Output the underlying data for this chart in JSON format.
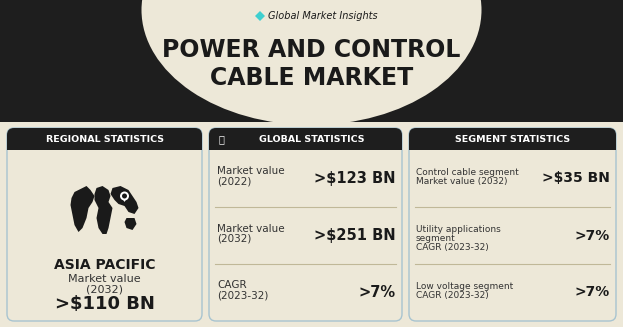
{
  "title_line1": "POWER AND CONTROL",
  "title_line2": "CABLE MARKET",
  "brand": "Global Market Insights",
  "bg_color": "#ede8d8",
  "header_dark": "#1e1e1e",
  "card_bg": "#ede8d8",
  "card_border": "#a8c4d0",
  "dark_hdr_bg": "#1e1e1e",
  "teal_color": "#3ecfcf",
  "white": "#ffffff",
  "text_dark": "#1a1a1a",
  "text_mid": "#333333",
  "sep_color": "#c0b898",
  "panel1_header": "REGIONAL STATISTICS",
  "panel1_region": "ASIA PACIFIC",
  "panel1_value": ">$110 BN",
  "panel2_header": "GLOBAL STATISTICS",
  "panel2_rows": [
    {
      "label1": "Market value",
      "label2": "(2022)",
      "value": ">$123 BN"
    },
    {
      "label1": "Market value",
      "label2": "(2032)",
      "value": ">$251 BN"
    },
    {
      "label1": "CAGR",
      "label2": "(2023-32)",
      "value": ">7%"
    }
  ],
  "panel3_header": "SEGMENT STATISTICS",
  "panel3_rows": [
    {
      "label1": "Control cable segment",
      "label2": "Market value (2032)",
      "value": ">$35 BN"
    },
    {
      "label1": "Utility applications",
      "label2": "segment",
      "label3": "CAGR (2023-32)",
      "value": ">7%"
    },
    {
      "label1": "Low voltage segment",
      "label2": "CAGR (2023-32)",
      "value": ">7%"
    }
  ],
  "fig_w": 6.23,
  "fig_h": 3.27,
  "dpi": 100
}
